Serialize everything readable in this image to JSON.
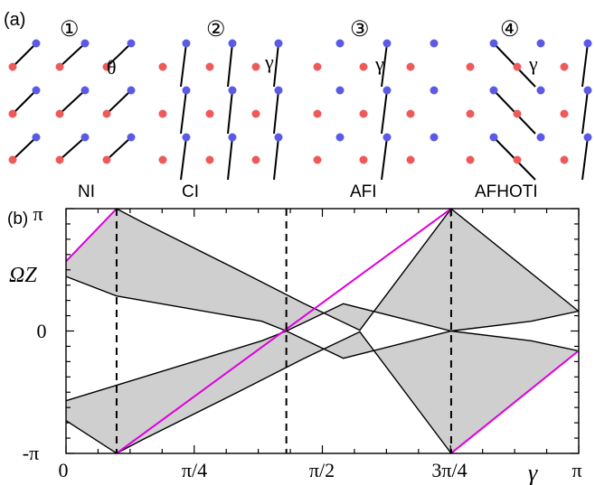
{
  "panel_a": {
    "label": "(a)",
    "lattices": [
      {
        "number": "①",
        "angle_symbol": "θ"
      },
      {
        "number": "②",
        "angle_symbol": "γ"
      },
      {
        "number": "③",
        "angle_symbol": "γ"
      },
      {
        "number": "④",
        "angle_symbol": "γ"
      }
    ],
    "colors": {
      "site_a": "#ee5a5a",
      "site_b": "#5a5ae6",
      "bond": "#000000"
    }
  },
  "phases": [
    "NI",
    "CI",
    "AFI",
    "AFHOTI"
  ],
  "panel_b": {
    "label": "(b)",
    "colors": {
      "band_fill": "#cfcfcf",
      "edge_line": "#dd00dd",
      "outline": "#000000"
    }
  },
  "chart_data": {
    "type": "area",
    "xlabel": "γ",
    "ylabel": "ΩZ",
    "xlim": [
      0,
      3.14159
    ],
    "ylim": [
      -3.14159,
      3.14159
    ],
    "x_tick_labels": [
      "0",
      "π/4",
      "π/2",
      "3π/4",
      "π"
    ],
    "y_tick_labels": [
      "-π",
      "0",
      "π"
    ],
    "phase_boundaries": [
      0.31,
      1.35,
      2.36
    ],
    "bands": [
      {
        "name": "upper band",
        "top": [
          [
            0,
            1.79
          ],
          [
            0.31,
            3.14
          ],
          [
            0.47,
            2.79
          ],
          [
            1.1,
            1.47
          ],
          [
            1.45,
            0.72
          ],
          [
            1.8,
            0.02
          ],
          [
            2.36,
            3.14
          ],
          [
            3.14,
            0.51
          ]
        ],
        "bottom": [
          [
            0,
            1.4
          ],
          [
            0.31,
            0.9
          ],
          [
            1.2,
            0.25
          ],
          [
            1.35,
            0.0
          ],
          [
            1.7,
            0.7
          ],
          [
            2.05,
            0.33
          ],
          [
            2.36,
            0.0
          ],
          [
            2.85,
            0.25
          ],
          [
            3.14,
            0.51
          ]
        ]
      },
      {
        "name": "lower band",
        "top": [
          [
            0,
            -1.79
          ],
          [
            1.2,
            -0.25
          ],
          [
            1.35,
            0.0
          ],
          [
            1.7,
            -0.7
          ],
          [
            2.05,
            -0.33
          ],
          [
            2.36,
            0.0
          ],
          [
            2.85,
            -0.25
          ],
          [
            3.14,
            -0.51
          ]
        ],
        "bottom": [
          [
            0,
            -2.3
          ],
          [
            0.31,
            -3.14
          ],
          [
            0.47,
            -2.79
          ],
          [
            1.1,
            -1.47
          ],
          [
            1.45,
            -0.72
          ],
          [
            1.8,
            -0.02
          ],
          [
            2.36,
            -3.14
          ],
          [
            3.14,
            -0.51
          ]
        ]
      }
    ],
    "edge_states": [
      {
        "points": [
          [
            0,
            1.79
          ],
          [
            0.31,
            3.14
          ]
        ]
      },
      {
        "points": [
          [
            0.31,
            -3.14
          ],
          [
            2.36,
            3.14
          ]
        ]
      },
      {
        "points": [
          [
            2.36,
            -3.14
          ],
          [
            3.14,
            -0.51
          ]
        ]
      }
    ]
  }
}
